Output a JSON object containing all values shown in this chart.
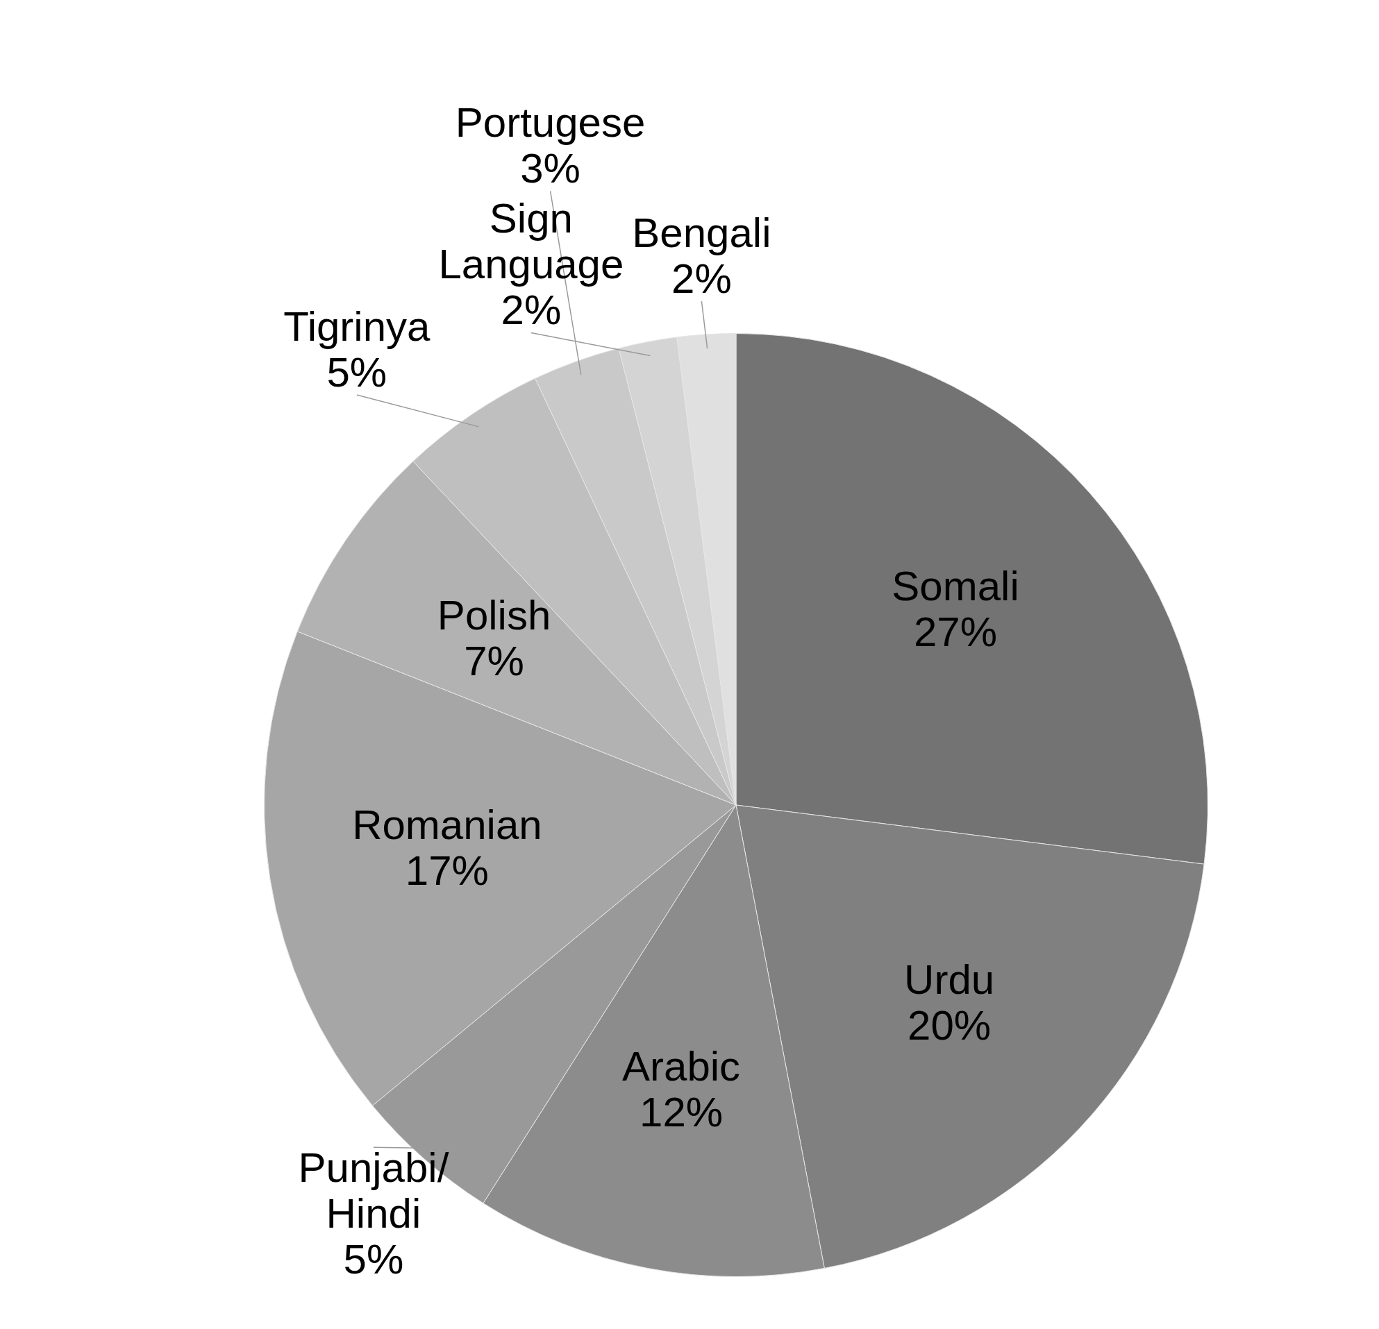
{
  "chart_data": {
    "type": "pie",
    "categories": [
      "Somali",
      "Urdu",
      "Arabic",
      "Punjabi/Hindi",
      "Romanian",
      "Polish",
      "Tigrinya",
      "Portugese",
      "Sign Language",
      "Bengali"
    ],
    "values": [
      27,
      20,
      12,
      5,
      17,
      7,
      5,
      3,
      2,
      2
    ],
    "value_labels": [
      "27%",
      "20%",
      "12%",
      "5%",
      "17%",
      "7%",
      "5%",
      "3%",
      "2%",
      "2%"
    ],
    "colors": [
      "#737373",
      "#808080",
      "#8c8c8c",
      "#999999",
      "#a6a6a6",
      "#b2b2b2",
      "#bfbfbf",
      "#c9c9c9",
      "#d4d4d4",
      "#e0e0e0"
    ],
    "legend": false
  }
}
